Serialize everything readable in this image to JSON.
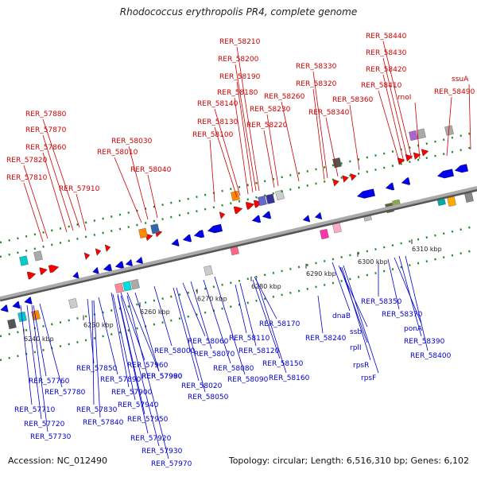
{
  "title": "Rhodococcus erythropolis PR4, complete genome",
  "accession": "Accession: NC_012490",
  "summary": "Topology: circular; Length: 6,516,310 bp; Genes: 6,102",
  "colors": {
    "top_label": "#cc0000",
    "bottom_label": "#0000cc",
    "forward": "#ff0000",
    "reverse": "#0000ee",
    "backbone": "#888888"
  },
  "ticks": [
    "6240 kbp",
    "6250 kbp",
    "6260 kbp",
    "6270 kbp",
    "6280 kbp",
    "6290 kbp",
    "6300 kbp",
    "6310 kbp"
  ],
  "top_labels": [
    "RER_58210",
    "RER_58200",
    "RER_58190",
    "RER_58180",
    "RER_58140",
    "RER_58130",
    "RER_58100",
    "RER_58230",
    "RER_58220",
    "RER_58260",
    "RER_58330",
    "RER_58320",
    "RER_58340",
    "RER_58360",
    "RER_58440",
    "RER_58430",
    "RER_58420",
    "RER_58410",
    "rnoI",
    "ssuA",
    "RER_58490",
    "RER_57880",
    "RER_57870",
    "RER_57860",
    "RER_57820",
    "RER_57810",
    "RER_57910",
    "RER_58030",
    "RER_58010",
    "RER_58040"
  ],
  "bottom_labels": [
    "RER_58170",
    "RER_58110",
    "RER_58120",
    "RER_58150",
    "RER_58160",
    "RER_58240",
    "dnaB",
    "ssb",
    "rplI",
    "rpsR",
    "rpsF",
    "RER_58350",
    "RER_58370",
    "ponA",
    "RER_58390",
    "RER_58400",
    "RER_58000",
    "RER_58060",
    "RER_58070",
    "RER_58080",
    "RER_58090",
    "RER_58020",
    "RER_58050",
    "RER_57990",
    "RER_57960",
    "RER_57980",
    "RER_57900",
    "RER_57940",
    "RER_57950",
    "RER_57920",
    "RER_57930",
    "RER_57970",
    "RER_57850",
    "RER_57890",
    "RER_57830",
    "RER_57840",
    "RER_57760",
    "RER_57780",
    "RER_57710",
    "RER_57720",
    "RER_57730"
  ]
}
